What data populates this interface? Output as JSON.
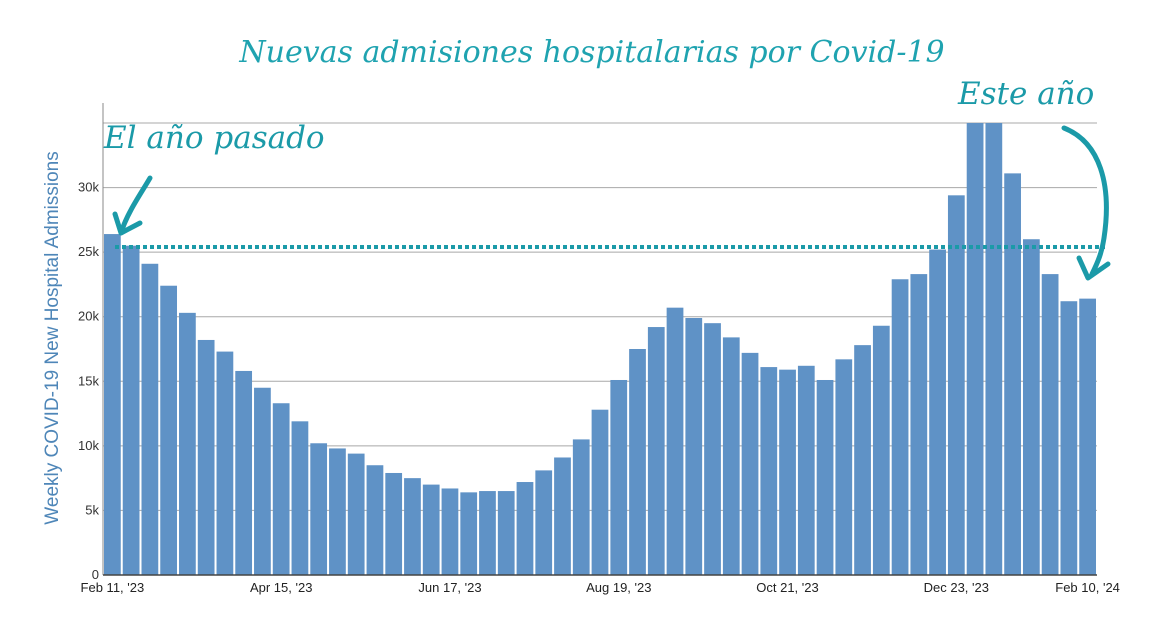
{
  "chart_data": {
    "type": "bar",
    "title": "Nuevas admisiones hospitalarias por Covid-19",
    "ylabel": "Weekly COVID-19 New Hospital Admissions",
    "xlabel": "",
    "ylim": [
      0,
      35000
    ],
    "yticks": [
      0,
      5000,
      10000,
      15000,
      20000,
      25000,
      30000
    ],
    "ytick_labels": [
      "0",
      "5k",
      "10k",
      "15k",
      "20k",
      "25k",
      "30k"
    ],
    "grid": true,
    "x_tick_labels": [
      {
        "index": 0,
        "label": "Feb 11, '23"
      },
      {
        "index": 9,
        "label": "Apr 15, '23"
      },
      {
        "index": 18,
        "label": "Jun 17, '23"
      },
      {
        "index": 27,
        "label": "Aug 19, '23"
      },
      {
        "index": 36,
        "label": "Oct 21, '23"
      },
      {
        "index": 45,
        "label": "Dec 23, '23"
      },
      {
        "index": 52,
        "label": "Feb 10, '24"
      }
    ],
    "values": [
      26400,
      25500,
      24100,
      22400,
      20300,
      18200,
      17300,
      15800,
      14500,
      13300,
      11900,
      10200,
      9800,
      9400,
      8500,
      7900,
      7500,
      7000,
      6700,
      6400,
      6500,
      6500,
      7200,
      8100,
      9100,
      10500,
      12800,
      15100,
      17500,
      19200,
      20700,
      19900,
      19500,
      18400,
      17200,
      16100,
      15900,
      16200,
      15100,
      16700,
      17800,
      19300,
      22900,
      23300,
      25200,
      29400,
      35000,
      35000,
      31100,
      26000,
      23300,
      21200,
      21400
    ],
    "bar_color": "#5f92c6",
    "reference_line": {
      "value": 25400,
      "style": "dotted",
      "color": "#1b9aa8"
    },
    "annotations": [
      {
        "text": "El año pasado",
        "arrow_to": "Feb 11, '23"
      },
      {
        "text": "Este año",
        "arrow_to": "Feb 10, '24"
      }
    ],
    "annotation_color": "#1b9aa8",
    "title_color": "#1fa3b0",
    "ylabel_color": "#4e86b8"
  }
}
